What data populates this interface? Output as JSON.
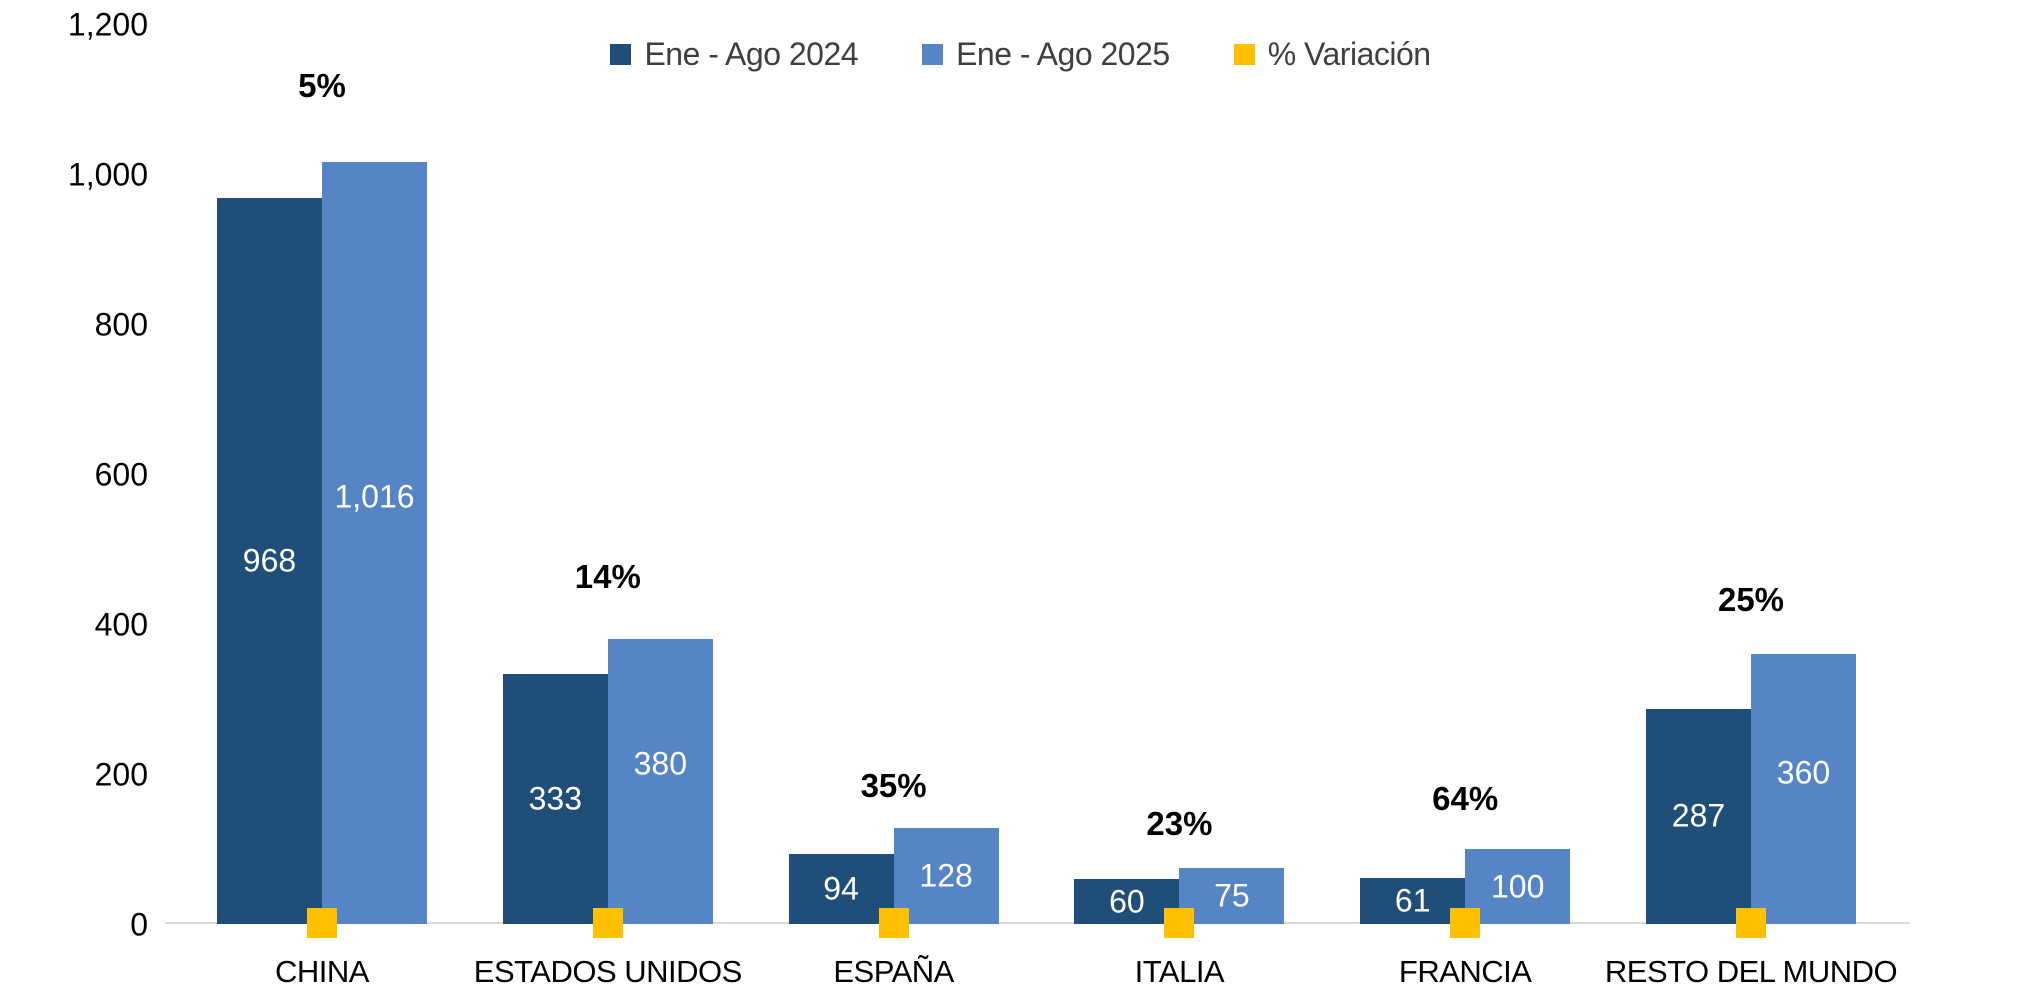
{
  "chart_data": {
    "type": "bar",
    "title": "",
    "categories": [
      "CHINA",
      "ESTADOS UNIDOS",
      "ESPAÑA",
      "ITALIA",
      "FRANCIA",
      "RESTO DEL MUNDO"
    ],
    "series": [
      {
        "name": "Ene - Ago 2024",
        "color": "#1f4e79",
        "values": [
          968,
          333,
          94,
          60,
          61,
          287
        ],
        "labels": [
          "968",
          "333",
          "94",
          "60",
          "61",
          "287"
        ]
      },
      {
        "name": "Ene - Ago 2025",
        "color": "#5585c5",
        "values": [
          1016,
          380,
          128,
          75,
          100,
          360
        ],
        "labels": [
          "1,016",
          "380",
          "128",
          "75",
          "100",
          "360"
        ]
      },
      {
        "name": "% Variación",
        "color": "#ffc000",
        "marker": "square",
        "values": [
          5,
          14,
          35,
          23,
          64,
          25
        ],
        "labels": [
          "5%",
          "14%",
          "35%",
          "23%",
          "64%",
          "25%"
        ]
      }
    ],
    "y_axis": {
      "min": 0,
      "max": 1200,
      "step": 200,
      "tick_labels": [
        "0",
        "200",
        "400",
        "600",
        "800",
        "1,000",
        "1,200"
      ]
    },
    "legend_position": "top-center",
    "grid": false,
    "background_color": "#ffffff",
    "axis_line_color": "#d9d9d9",
    "value_label_color": "#ffffff"
  }
}
